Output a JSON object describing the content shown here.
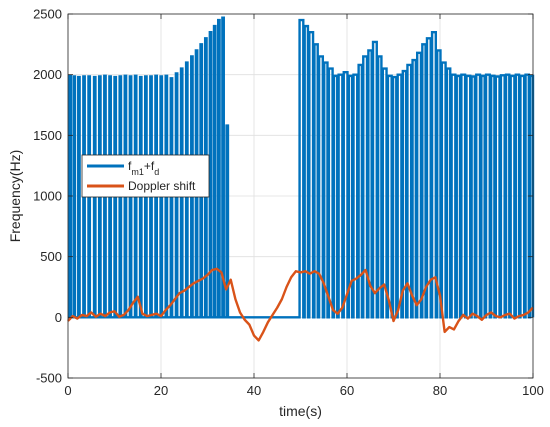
{
  "chart_data": {
    "type": "line",
    "xlabel": "time(s)",
    "ylabel": "Frequency(Hz)",
    "xlim": [
      0,
      100
    ],
    "ylim": [
      -500,
      2500
    ],
    "xticks": [
      0,
      20,
      40,
      60,
      80,
      100
    ],
    "yticks": [
      -500,
      0,
      500,
      1000,
      1500,
      2000,
      2500
    ],
    "grid": true,
    "legend_position": "middle-left",
    "series": [
      {
        "name": "f_m1+f_d",
        "name_main": "f",
        "name_sub1": "m1",
        "name_plus": "+f",
        "name_sub2": "d",
        "color": "#0072BD",
        "style": "square-pulse train: 0 Hz baseline with pulses near 2000 Hz; 0 Hz gap between about 35 s and 50 s",
        "x": [
          0.0,
          0.3,
          0.6,
          1.2,
          1.5,
          2.2,
          2.5,
          3.3,
          3.6,
          4.4,
          4.7,
          5.6,
          5.9,
          6.7,
          7.0,
          7.8,
          8.1,
          8.9,
          9.2,
          10.0,
          10.3,
          11.1,
          11.4,
          12.2,
          12.5,
          13.3,
          13.6,
          14.4,
          14.7,
          15.5,
          15.8,
          16.6,
          16.9,
          17.7,
          18.0,
          18.8,
          19.1,
          19.9,
          20.2,
          21.0,
          21.3,
          22.1,
          22.4,
          23.2,
          23.5,
          24.3,
          24.6,
          25.4,
          25.7,
          26.5,
          26.8,
          27.5,
          27.8,
          28.5,
          28.8,
          29.5,
          29.8,
          30.5,
          30.8,
          31.4,
          31.7,
          32.3,
          32.6,
          33.2,
          33.5,
          34.1,
          34.4,
          35.0,
          49.5,
          49.8,
          50.6,
          50.9,
          51.6,
          51.9,
          52.7,
          53.0,
          53.7,
          54.0,
          54.8,
          55.1,
          55.8,
          56.1,
          56.9,
          57.2,
          57.9,
          58.2,
          59.0,
          59.3,
          60.1,
          60.4,
          61.1,
          61.4,
          62.2,
          62.5,
          63.2,
          63.5,
          64.3,
          64.6,
          65.3,
          65.6,
          66.4,
          66.7,
          67.4,
          67.7,
          68.5,
          68.8,
          69.6,
          69.9,
          70.6,
          70.9,
          71.7,
          72.0,
          72.7,
          73.0,
          73.8,
          74.1,
          74.8,
          75.1,
          75.9,
          76.2,
          76.9,
          77.2,
          78.0,
          78.3,
          79.1,
          79.4,
          80.1,
          80.4,
          81.2,
          81.5,
          82.2,
          82.5,
          83.3,
          83.6,
          84.3,
          84.6,
          85.4,
          85.7,
          86.5,
          86.8,
          87.5,
          87.8,
          88.6,
          88.9,
          89.6,
          89.9,
          90.7,
          91.0,
          91.7,
          92.0,
          92.8,
          93.1,
          93.9,
          94.2,
          94.9,
          95.2,
          96.0,
          96.3,
          97.0,
          97.3,
          98.1,
          98.4,
          99.1,
          99.4,
          100.0
        ],
        "y": [
          0,
          1990,
          0,
          1985,
          0,
          1980,
          0,
          1985,
          0,
          1985,
          0,
          1980,
          0,
          1985,
          0,
          1990,
          0,
          1985,
          0,
          1980,
          0,
          1985,
          0,
          1990,
          0,
          1985,
          0,
          1990,
          0,
          1980,
          0,
          1985,
          0,
          1985,
          0,
          1990,
          0,
          1985,
          0,
          1990,
          0,
          1970,
          0,
          2010,
          0,
          2050,
          0,
          2100,
          0,
          2150,
          0,
          2200,
          0,
          2250,
          0,
          2300,
          0,
          2350,
          0,
          2400,
          0,
          2450,
          0,
          2470,
          0,
          1580,
          0,
          0,
          0,
          2450,
          0,
          2400,
          0,
          2350,
          0,
          2250,
          0,
          2150,
          0,
          2100,
          0,
          2050,
          0,
          1990,
          0,
          2000,
          0,
          2020,
          0,
          1990,
          0,
          2000,
          0,
          2080,
          0,
          2150,
          0,
          2200,
          0,
          2270,
          0,
          2150,
          0,
          2050,
          0,
          1990,
          0,
          1980,
          0,
          2000,
          0,
          2030,
          0,
          2080,
          0,
          2120,
          0,
          2180,
          0,
          2250,
          0,
          2300,
          0,
          2350,
          0,
          2200,
          0,
          2100,
          0,
          2050,
          0,
          2000,
          0,
          1990,
          0,
          2000,
          0,
          1990,
          0,
          1985,
          0,
          2000,
          0,
          1990,
          0,
          2000,
          0,
          1990,
          0,
          1985,
          0,
          1995,
          0,
          2000,
          0,
          1990,
          0,
          2000,
          0,
          1990,
          0,
          2000,
          0,
          1990,
          0
        ]
      },
      {
        "name": "Doppler shift",
        "color": "#D95319",
        "x": [
          0,
          1,
          2,
          3,
          4,
          5,
          6,
          7,
          8,
          9,
          10,
          11,
          12,
          13,
          14,
          15,
          16,
          17,
          18,
          19,
          20,
          21,
          22,
          23,
          24,
          25,
          26,
          27,
          28,
          29,
          30,
          31,
          32,
          33,
          34,
          35,
          36,
          37,
          38,
          39,
          40,
          41,
          42,
          43,
          44,
          45,
          46,
          47,
          48,
          49,
          50,
          51,
          52,
          53,
          54,
          55,
          56,
          57,
          58,
          59,
          60,
          61,
          62,
          63,
          64,
          65,
          66,
          67,
          68,
          69,
          70,
          71,
          72,
          73,
          74,
          75,
          76,
          77,
          78,
          79,
          80,
          81,
          82,
          83,
          84,
          85,
          86,
          87,
          88,
          89,
          90,
          91,
          92,
          93,
          94,
          95,
          96,
          97,
          98,
          99,
          100
        ],
        "y": [
          -30,
          10,
          -10,
          20,
          10,
          40,
          5,
          30,
          10,
          40,
          50,
          5,
          20,
          60,
          120,
          170,
          30,
          10,
          20,
          30,
          10,
          60,
          100,
          150,
          200,
          220,
          250,
          280,
          300,
          320,
          350,
          390,
          400,
          370,
          230,
          310,
          150,
          40,
          -20,
          -60,
          -150,
          -190,
          -120,
          -40,
          20,
          80,
          150,
          250,
          330,
          380,
          370,
          380,
          360,
          380,
          360,
          280,
          170,
          60,
          30,
          80,
          190,
          300,
          320,
          350,
          390,
          260,
          200,
          240,
          270,
          140,
          -30,
          60,
          220,
          280,
          180,
          100,
          150,
          250,
          310,
          330,
          180,
          -120,
          -80,
          -100,
          -30,
          20,
          -10,
          30,
          10,
          -20,
          20,
          40,
          10,
          0,
          20,
          30,
          -10,
          10,
          20,
          40,
          80
        ]
      }
    ]
  }
}
